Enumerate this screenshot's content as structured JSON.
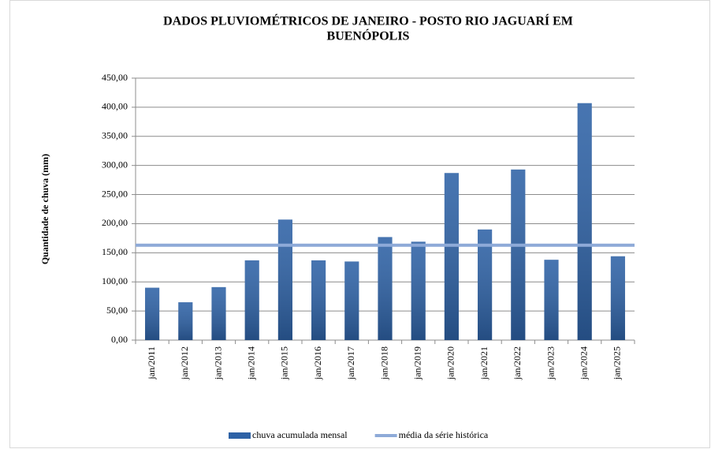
{
  "chart_data": {
    "type": "bar",
    "title": "DADOS PLUVIOMÉTRICOS DE JANEIRO - POSTO RIO JAGUARÍ EM",
    "title_line2": "BUENÓPOLIS",
    "ylabel": "Quantidade de chuva (mm)",
    "categories": [
      "jan/2011",
      "jan/2012",
      "jan/2013",
      "jan/2014",
      "jan/2015",
      "jan/2016",
      "jan/2017",
      "jan/2018",
      "jan/2019",
      "jan/2020",
      "jan/2021",
      "jan/2022",
      "jan/2023",
      "jan/2024",
      "jan/2025"
    ],
    "series": [
      {
        "name": "chuva acumulada mensal",
        "color": "#2e62a6",
        "values": [
          90,
          65,
          91,
          137,
          207,
          137,
          135,
          177,
          169,
          287,
          190,
          293,
          138,
          407,
          144
        ]
      },
      {
        "name": "média da série histórica",
        "type": "line",
        "color": "#8eaad8",
        "values": [
          163,
          163,
          163,
          163,
          163,
          163,
          163,
          163,
          163,
          163,
          163,
          163,
          163,
          163,
          163
        ]
      }
    ],
    "ylim": [
      0,
      450
    ],
    "yticks": [
      {
        "value": 0,
        "label": "0,00"
      },
      {
        "value": 50,
        "label": "50,00"
      },
      {
        "value": 100,
        "label": "100,00"
      },
      {
        "value": 150,
        "label": "150,00"
      },
      {
        "value": 200,
        "label": "200,00"
      },
      {
        "value": 250,
        "label": "250,00"
      },
      {
        "value": 300,
        "label": "300,00"
      },
      {
        "value": 350,
        "label": "350,00"
      },
      {
        "value": 400,
        "label": "400,00"
      },
      {
        "value": 450,
        "label": "450,00"
      }
    ],
    "grid": true,
    "legend": "bottom"
  }
}
